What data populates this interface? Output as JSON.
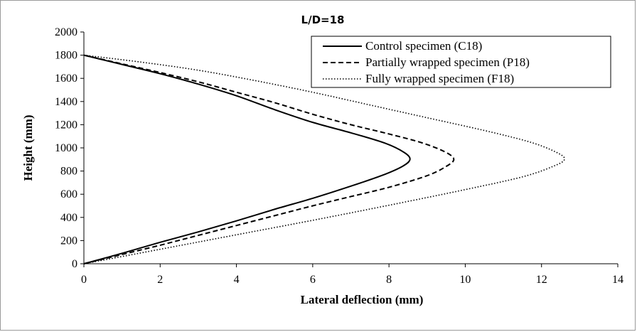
{
  "chart_data": {
    "type": "line",
    "title": "L/D=18",
    "xlabel": "Lateral deflection (mm)",
    "ylabel": "Height (mm)",
    "xlim": [
      0,
      14
    ],
    "ylim": [
      0,
      2000
    ],
    "xticks": [
      0,
      2,
      4,
      6,
      8,
      10,
      12,
      14
    ],
    "yticks": [
      0,
      200,
      400,
      600,
      800,
      1000,
      1200,
      1400,
      1600,
      1800,
      2000
    ],
    "grid": false,
    "legend_position": "top-right",
    "series": [
      {
        "name": "Control specimen (C18)",
        "style": "solid",
        "color": "#000000",
        "points": [
          [
            0,
            0
          ],
          [
            1,
            90
          ],
          [
            2,
            185
          ],
          [
            3,
            275
          ],
          [
            4,
            370
          ],
          [
            5,
            470
          ],
          [
            6,
            565
          ],
          [
            7,
            670
          ],
          [
            7.8,
            760
          ],
          [
            8.35,
            840
          ],
          [
            8.55,
            900
          ],
          [
            8.4,
            960
          ],
          [
            7.9,
            1040
          ],
          [
            7.0,
            1130
          ],
          [
            6.0,
            1220
          ],
          [
            5.0,
            1330
          ],
          [
            4.0,
            1450
          ],
          [
            3.0,
            1550
          ],
          [
            2.0,
            1640
          ],
          [
            1.0,
            1720
          ],
          [
            0,
            1800
          ]
        ]
      },
      {
        "name": "Partially wrapped specimen (P18)",
        "style": "dashed",
        "color": "#000000",
        "points": [
          [
            0,
            0
          ],
          [
            1,
            80
          ],
          [
            2,
            160
          ],
          [
            3,
            245
          ],
          [
            4,
            330
          ],
          [
            5,
            415
          ],
          [
            6,
            500
          ],
          [
            7,
            580
          ],
          [
            8,
            660
          ],
          [
            9,
            760
          ],
          [
            9.5,
            840
          ],
          [
            9.7,
            900
          ],
          [
            9.5,
            960
          ],
          [
            8.9,
            1040
          ],
          [
            8.0,
            1120
          ],
          [
            7.0,
            1200
          ],
          [
            6.0,
            1290
          ],
          [
            5.0,
            1390
          ],
          [
            4.0,
            1480
          ],
          [
            3.0,
            1570
          ],
          [
            2.0,
            1650
          ],
          [
            1.0,
            1725
          ],
          [
            0,
            1800
          ]
        ]
      },
      {
        "name": "Fully wrapped specimen (F18)",
        "style": "dotted",
        "color": "#000000",
        "points": [
          [
            0,
            0
          ],
          [
            2,
            125
          ],
          [
            4,
            250
          ],
          [
            6,
            375
          ],
          [
            8,
            505
          ],
          [
            10,
            640
          ],
          [
            11.5,
            750
          ],
          [
            12.3,
            840
          ],
          [
            12.6,
            900
          ],
          [
            12.4,
            960
          ],
          [
            11.7,
            1050
          ],
          [
            10.5,
            1150
          ],
          [
            9,
            1260
          ],
          [
            7.5,
            1370
          ],
          [
            6,
            1480
          ],
          [
            4.5,
            1580
          ],
          [
            3,
            1670
          ],
          [
            1.5,
            1740
          ],
          [
            0,
            1800
          ]
        ]
      }
    ]
  }
}
